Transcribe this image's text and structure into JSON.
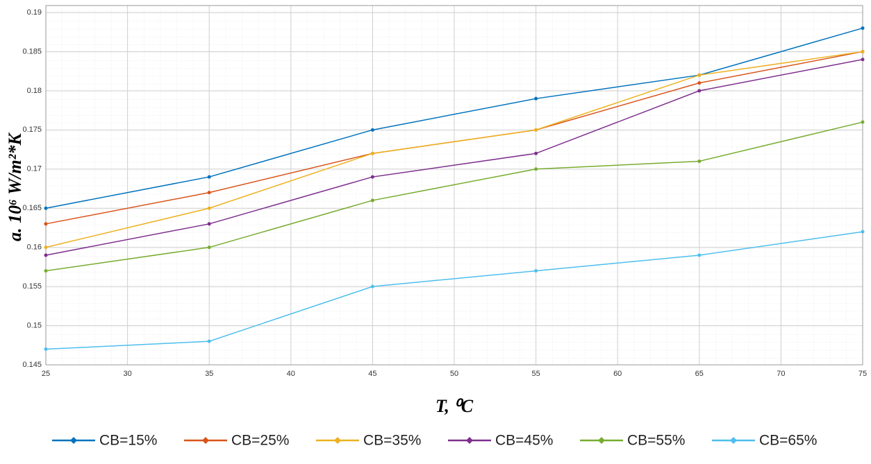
{
  "chart_data": {
    "type": "line",
    "x": [
      25,
      35,
      45,
      55,
      65,
      75
    ],
    "xlim": [
      25,
      75
    ],
    "xticks": [
      25,
      30,
      35,
      40,
      45,
      50,
      55,
      60,
      65,
      70,
      75
    ],
    "ylim": [
      0.145,
      0.19
    ],
    "yticks": [
      0.145,
      0.15,
      0.155,
      0.16,
      0.165,
      0.17,
      0.175,
      0.18,
      0.185,
      0.19
    ],
    "x_label": "T, ⁰C",
    "y_label": "a. 10⁶ W/m²*K",
    "grid": true,
    "legend": "bottom",
    "series": [
      {
        "name": "CB=15%",
        "color": "#0072bd",
        "values": [
          0.165,
          0.169,
          0.175,
          0.179,
          0.182,
          0.188
        ]
      },
      {
        "name": "CB=25%",
        "color": "#d95319",
        "values": [
          0.163,
          0.167,
          0.172,
          0.175,
          0.181,
          0.185
        ]
      },
      {
        "name": "CB=35%",
        "color": "#edb120",
        "values": [
          0.16,
          0.165,
          0.172,
          0.175,
          0.182,
          0.185
        ]
      },
      {
        "name": "CB=45%",
        "color": "#7e2f8e",
        "values": [
          0.159,
          0.163,
          0.169,
          0.172,
          0.18,
          0.184
        ]
      },
      {
        "name": "CB=55%",
        "color": "#77ac30",
        "values": [
          0.157,
          0.16,
          0.166,
          0.17,
          0.171,
          0.176
        ]
      },
      {
        "name": "CB=65%",
        "color": "#4dbeee",
        "values": [
          0.147,
          0.148,
          0.155,
          0.157,
          0.159,
          0.162
        ]
      }
    ]
  }
}
